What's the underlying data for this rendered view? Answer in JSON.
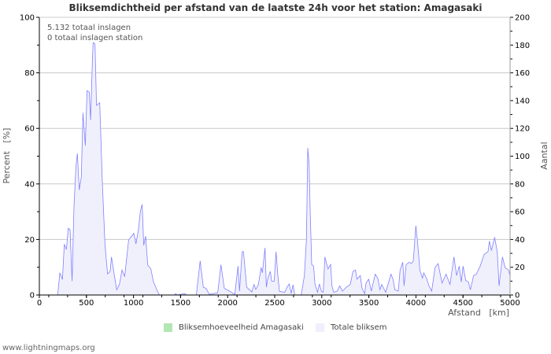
{
  "chart_data": {
    "type": "area",
    "title": "Bliksemdichtheid per afstand van de laatste 24h voor het station: Amagasaki",
    "annotations": [
      "5.132 totaal inslagen",
      "0 totaal inslagen station"
    ],
    "xlabel": "Afstand   [km]",
    "ylabel": "Percent   [%]",
    "y2label": "Aantal",
    "xlim": [
      0,
      5000
    ],
    "ylim": [
      0,
      100
    ],
    "y2lim": [
      0,
      200
    ],
    "xticks": [
      "0",
      "500",
      "1000",
      "1500",
      "2000",
      "2500",
      "3000",
      "3500",
      "4000",
      "4500",
      "5000"
    ],
    "yticks": [
      "0",
      "20",
      "40",
      "60",
      "80",
      "100"
    ],
    "y2ticks": [
      "0",
      "20",
      "40",
      "60",
      "80",
      "100",
      "120",
      "140",
      "160",
      "180",
      "200"
    ],
    "grid": true,
    "legend": {
      "placement": "bottom",
      "items": [
        "Bliksemhoeveelheid Amagasaki",
        "Totale bliksem"
      ]
    },
    "colors": {
      "station": "#b3e6b3",
      "total_fill": "#f0f0fc",
      "total_line": "#8080ff",
      "grid": "#c8c8c8"
    },
    "series": [
      {
        "name": "Bliksemhoeveelheid Amagasaki",
        "points": [
          [
            0,
            0
          ],
          [
            5000,
            0
          ]
        ]
      },
      {
        "name": "Totale bliksem",
        "points": [
          [
            195,
            0
          ],
          [
            217,
            8
          ],
          [
            245,
            5.6
          ],
          [
            265,
            18.3
          ],
          [
            287,
            16.4
          ],
          [
            307,
            24
          ],
          [
            326,
            23.5
          ],
          [
            348,
            5
          ],
          [
            368,
            32
          ],
          [
            390,
            46.7
          ],
          [
            404,
            51
          ],
          [
            424,
            37.8
          ],
          [
            446,
            42.5
          ],
          [
            463,
            65.6
          ],
          [
            488,
            53.8
          ],
          [
            507,
            73.6
          ],
          [
            530,
            73
          ],
          [
            544,
            63
          ],
          [
            563,
            83.8
          ],
          [
            571,
            90.9
          ],
          [
            591,
            90.4
          ],
          [
            607,
            68.3
          ],
          [
            641,
            69.2
          ],
          [
            669,
            40.6
          ],
          [
            697,
            17.9
          ],
          [
            725,
            7.6
          ],
          [
            752,
            8.5
          ],
          [
            766,
            13.7
          ],
          [
            794,
            7.6
          ],
          [
            822,
            1.9
          ],
          [
            850,
            3.8
          ],
          [
            878,
            9
          ],
          [
            906,
            6.6
          ],
          [
            948,
            19.8
          ],
          [
            1003,
            22.2
          ],
          [
            1026,
            18.4
          ],
          [
            1053,
            23.6
          ],
          [
            1073,
            30.2
          ],
          [
            1092,
            32.6
          ],
          [
            1109,
            17.9
          ],
          [
            1129,
            21.2
          ],
          [
            1151,
            10.8
          ],
          [
            1184,
            9.4
          ],
          [
            1212,
            4.7
          ],
          [
            1254,
            1.4
          ],
          [
            1276,
            0
          ],
          [
            1435,
            0
          ],
          [
            1449,
            0.5
          ],
          [
            1463,
            0
          ],
          [
            1547,
            0.5
          ],
          [
            1561,
            0
          ],
          [
            1667,
            0
          ],
          [
            1708,
            12.3
          ],
          [
            1742,
            2.8
          ],
          [
            1770,
            2.4
          ],
          [
            1806,
            0.2
          ],
          [
            1895,
            0.8
          ],
          [
            1929,
            10.9
          ],
          [
            1965,
            2.4
          ],
          [
            2021,
            1.4
          ],
          [
            2076,
            0.2
          ],
          [
            2110,
            10.4
          ],
          [
            2126,
            1.4
          ],
          [
            2154,
            15.6
          ],
          [
            2168,
            15.6
          ],
          [
            2202,
            2.8
          ],
          [
            2257,
            1.1
          ],
          [
            2280,
            3.8
          ],
          [
            2299,
            2
          ],
          [
            2327,
            3.8
          ],
          [
            2355,
            9.9
          ],
          [
            2369,
            8
          ],
          [
            2397,
            17
          ],
          [
            2411,
            2.8
          ],
          [
            2425,
            5.7
          ],
          [
            2453,
            8.5
          ],
          [
            2467,
            5
          ],
          [
            2495,
            5
          ],
          [
            2514,
            15.6
          ],
          [
            2531,
            8
          ],
          [
            2550,
            1.3
          ],
          [
            2606,
            1
          ],
          [
            2634,
            3
          ],
          [
            2654,
            4
          ],
          [
            2676,
            0.6
          ],
          [
            2695,
            3.7
          ],
          [
            2712,
            0
          ],
          [
            2782,
            0
          ],
          [
            2815,
            7
          ],
          [
            2837,
            20
          ],
          [
            2843,
            33
          ],
          [
            2851,
            53
          ],
          [
            2865,
            47
          ],
          [
            2876,
            31
          ],
          [
            2893,
            11
          ],
          [
            2913,
            10.4
          ],
          [
            2927,
            4
          ],
          [
            2955,
            1
          ],
          [
            2974,
            4
          ],
          [
            2996,
            1.4
          ],
          [
            3016,
            1
          ],
          [
            3033,
            13.7
          ],
          [
            3066,
            9.4
          ],
          [
            3094,
            11
          ],
          [
            3108,
            3.3
          ],
          [
            3127,
            1
          ],
          [
            3164,
            1.4
          ],
          [
            3191,
            3.3
          ],
          [
            3219,
            1.4
          ],
          [
            3261,
            2.8
          ],
          [
            3303,
            3.8
          ],
          [
            3331,
            8.5
          ],
          [
            3359,
            9
          ],
          [
            3373,
            5.7
          ],
          [
            3409,
            7
          ],
          [
            3428,
            2.3
          ],
          [
            3456,
            0.5
          ],
          [
            3470,
            4.3
          ],
          [
            3498,
            5.7
          ],
          [
            3526,
            1.4
          ],
          [
            3568,
            7.5
          ],
          [
            3595,
            6
          ],
          [
            3618,
            1.9
          ],
          [
            3637,
            3.8
          ],
          [
            3679,
            1
          ],
          [
            3735,
            7.5
          ],
          [
            3757,
            5.7
          ],
          [
            3777,
            1.9
          ],
          [
            3813,
            1.4
          ],
          [
            3832,
            9
          ],
          [
            3860,
            11.8
          ],
          [
            3874,
            3.3
          ],
          [
            3896,
            11
          ],
          [
            3930,
            11.8
          ],
          [
            3952,
            11.3
          ],
          [
            3972,
            12.3
          ],
          [
            3999,
            25
          ],
          [
            4019,
            18.4
          ],
          [
            4042,
            9
          ],
          [
            4069,
            6.1
          ],
          [
            4083,
            8
          ],
          [
            4111,
            6.1
          ],
          [
            4139,
            3.3
          ],
          [
            4167,
            1.4
          ],
          [
            4203,
            9.9
          ],
          [
            4236,
            11.3
          ],
          [
            4278,
            4.3
          ],
          [
            4320,
            7.5
          ],
          [
            4362,
            3.8
          ],
          [
            4404,
            13.7
          ],
          [
            4432,
            7
          ],
          [
            4460,
            10.4
          ],
          [
            4482,
            4.7
          ],
          [
            4501,
            10.4
          ],
          [
            4529,
            5.2
          ],
          [
            4557,
            4.7
          ],
          [
            4579,
            1.9
          ],
          [
            4613,
            7
          ],
          [
            4641,
            7.5
          ],
          [
            4682,
            10.4
          ],
          [
            4724,
            14.6
          ],
          [
            4766,
            15.6
          ],
          [
            4780,
            19.4
          ],
          [
            4802,
            16
          ],
          [
            4836,
            20.8
          ],
          [
            4864,
            15.6
          ],
          [
            4883,
            3.3
          ],
          [
            4919,
            13.7
          ],
          [
            4947,
            9.9
          ],
          [
            4983,
            9
          ],
          [
            5000,
            7
          ]
        ]
      }
    ]
  },
  "footer": "www.lightningmaps.org"
}
